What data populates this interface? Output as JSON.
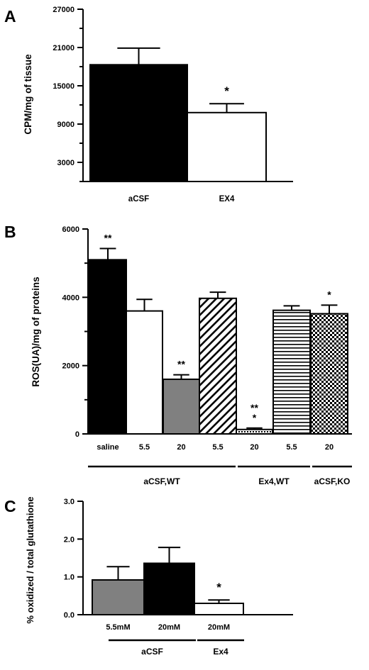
{
  "colors": {
    "black": "#000000",
    "white": "#ffffff",
    "gray": "#808080"
  },
  "chart_data": [
    {
      "panel": "A",
      "type": "bar",
      "ylabel": "CPM/mg of tissue",
      "ylim": [
        0,
        27000
      ],
      "yticks": [
        3000,
        9000,
        15000,
        21000,
        27000
      ],
      "categories": [
        "aCSF",
        "EX4"
      ],
      "values": [
        18300,
        10800
      ],
      "errors": [
        2600,
        1400
      ],
      "fills": [
        "black",
        "white"
      ],
      "annotations": [
        "",
        "*"
      ]
    },
    {
      "panel": "B",
      "type": "bar",
      "ylabel": "ROS(UA)/mg of proteins",
      "ylim": [
        0,
        6000
      ],
      "yticks": [
        0,
        2000,
        4000,
        6000
      ],
      "categories": [
        "saline",
        "5.5",
        "20",
        "5.5",
        "20",
        "5.5",
        "20"
      ],
      "values": [
        5100,
        3600,
        1600,
        3970,
        130,
        3620,
        3520
      ],
      "errors": [
        330,
        340,
        130,
        180,
        40,
        130,
        250
      ],
      "fills": [
        "black",
        "white",
        "gray",
        "diagonal",
        "dotted",
        "horizontal",
        "checker"
      ],
      "annotations": [
        [
          "**"
        ],
        [],
        [
          "**"
        ],
        [],
        [
          "**",
          "*"
        ],
        [],
        [
          "*"
        ]
      ],
      "groups": [
        {
          "label": "aCSF,WT",
          "bars": [
            0,
            1,
            2
          ]
        },
        {
          "label": "Ex4,WT",
          "bars": [
            3,
            4
          ]
        },
        {
          "label": "aCSF,KO",
          "bars": [
            5,
            6
          ]
        }
      ]
    },
    {
      "panel": "C",
      "type": "bar",
      "ylabel": "% oxidized / total glutathione",
      "ylim": [
        0,
        3.0
      ],
      "yticks": [
        0.0,
        1.0,
        2.0,
        3.0
      ],
      "tick_labels": [
        "0.0",
        "1.0",
        "2.0",
        "3.0"
      ],
      "categories": [
        "5.5mM",
        "20mM",
        "20mM"
      ],
      "values": [
        0.92,
        1.36,
        0.3
      ],
      "errors": [
        0.35,
        0.42,
        0.09
      ],
      "fills": [
        "gray",
        "black",
        "white"
      ],
      "annotations": [
        "",
        "",
        "*"
      ],
      "groups": [
        {
          "label": "aCSF",
          "bars": [
            0,
            1
          ]
        },
        {
          "label": "Ex4",
          "bars": [
            2
          ]
        }
      ]
    }
  ]
}
